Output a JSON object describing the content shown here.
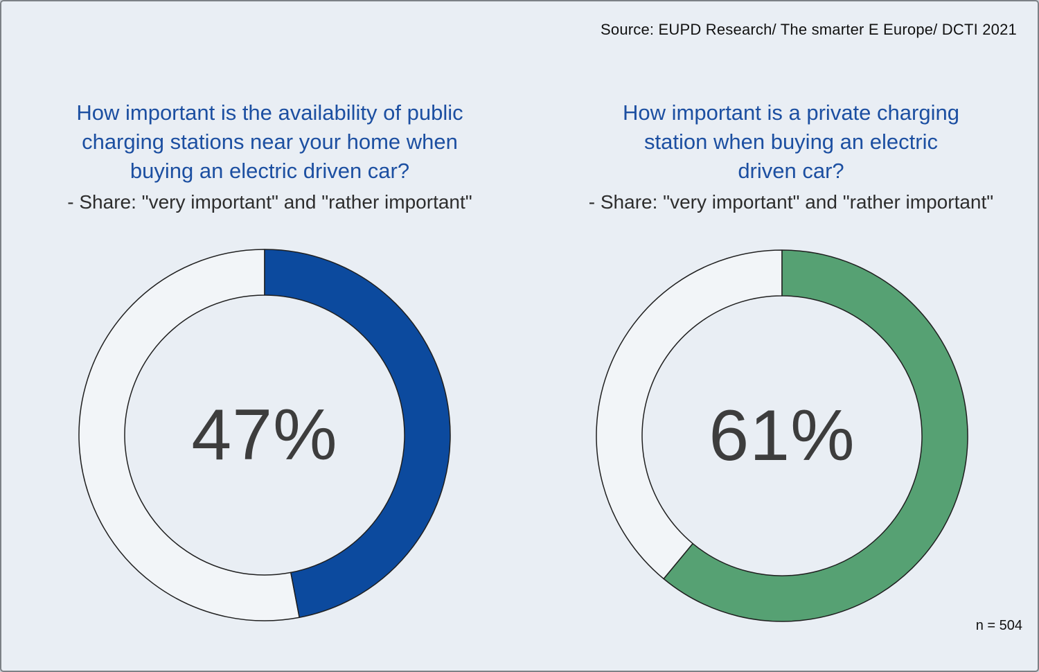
{
  "source": "Source: EUPD Research/ The smarter E Europe/ DCTI 2021",
  "footnote": "n = 504",
  "panels": [
    {
      "title_lines": [
        "How important is the availability of public",
        "charging stations near your home when",
        "buying an electric driven car?"
      ],
      "subtitle": "- Share: \"very important\" and \"rather important\""
    },
    {
      "title_lines": [
        "How important is a private charging",
        "station when buying an electric",
        "driven car?"
      ],
      "subtitle": "- Share: \"very important\" and \"rather important\""
    }
  ],
  "chart_data": [
    {
      "type": "pie",
      "subtype": "donut",
      "title": "How important is the availability of public charging stations near your home when buying an electric driven car?",
      "subtitle": "- Share: \"very important\" and \"rather important\"",
      "categories": [
        "very important + rather important",
        "remainder"
      ],
      "values": [
        47,
        53
      ],
      "label": "47%",
      "segment_color": "#0c4a9e",
      "remainder_color": "#f2f5f8",
      "outline_color": "#1f1f1f",
      "start_angle_deg": 0,
      "direction": "clockwise",
      "legend": "none"
    },
    {
      "type": "pie",
      "subtype": "donut",
      "title": "How important is a private charging station when buying an electric driven car?",
      "subtitle": "- Share: \"very important\" and \"rather important\"",
      "categories": [
        "very important + rather important",
        "remainder"
      ],
      "values": [
        61,
        39
      ],
      "label": "61%",
      "segment_color": "#56a173",
      "remainder_color": "#f2f5f8",
      "outline_color": "#1f1f1f",
      "start_angle_deg": 0,
      "direction": "clockwise",
      "legend": "none"
    }
  ],
  "style": {
    "background": "#e9eef4",
    "title_color": "#1c4fa1",
    "subtitle_color": "#2d2d2d",
    "value_color": "#3d3d3d",
    "border_color": "#7c8186"
  }
}
